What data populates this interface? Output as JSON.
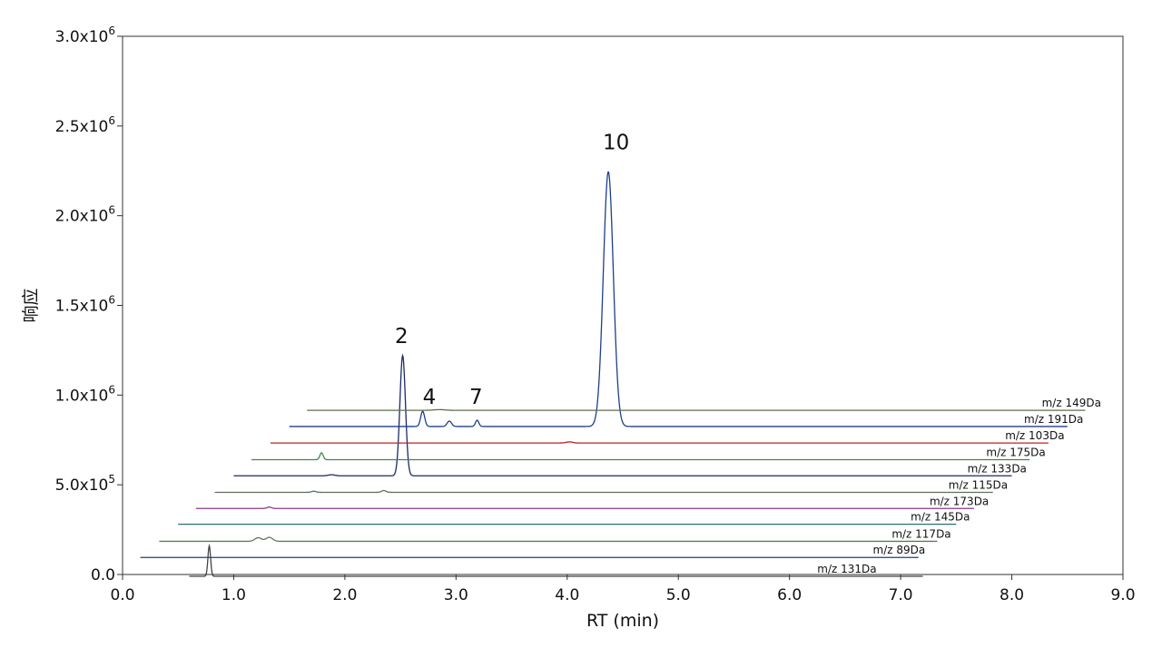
{
  "chart_data": {
    "type": "line",
    "title": "",
    "xlabel": "RT (min)",
    "ylabel": "响应",
    "xlim": [
      0,
      9
    ],
    "ylim": [
      0,
      3000000
    ],
    "grid": false,
    "x_ticks": [
      "0.0",
      "1.0",
      "2.0",
      "3.0",
      "4.0",
      "5.0",
      "6.0",
      "7.0",
      "8.0",
      "9.0"
    ],
    "y_ticks": [
      {
        "value": 0,
        "label": "0.0",
        "exp": ""
      },
      {
        "value": 500000,
        "label": "5.0x10",
        "exp": "5"
      },
      {
        "value": 1000000,
        "label": "1.0x10",
        "exp": "6"
      },
      {
        "value": 1500000,
        "label": "1.5x10",
        "exp": "6"
      },
      {
        "value": 2000000,
        "label": "2.0x10",
        "exp": "6"
      },
      {
        "value": 2500000,
        "label": "2.5x10",
        "exp": "6"
      },
      {
        "value": 3000000,
        "label": "3.0x10",
        "exp": "6"
      }
    ],
    "note": "Stacked (offset) chromatograms; each trace is drawn with a baseline offset in x and y.",
    "series": [
      {
        "name": "m/z 131Da",
        "color": "#444444",
        "x_offset": 0.0,
        "baseline": -10000,
        "x": [
          0.6,
          7.2
        ],
        "label_x": 6.25,
        "peaks": [
          {
            "rt": 0.78,
            "height": 170000,
            "width": 0.012
          }
        ]
      },
      {
        "name": "m/z 89Da",
        "color": "#1f3f7a",
        "x_offset": 0.16,
        "baseline": 95000,
        "x": [
          0.16,
          7.16
        ],
        "label_x": 6.75,
        "peaks": []
      },
      {
        "name": "m/z 117Da",
        "color": "#5b7a5b",
        "x_offset": 0.33,
        "baseline": 185000,
        "x": [
          0.33,
          7.33
        ],
        "label_x": 6.92,
        "peaks": [
          {
            "rt": 1.22,
            "height": 20000,
            "width": 0.03
          },
          {
            "rt": 1.32,
            "height": 22000,
            "width": 0.03
          }
        ]
      },
      {
        "name": "m/z 145Da",
        "color": "#2f6c7a",
        "x_offset": 0.5,
        "baseline": 280000,
        "x": [
          0.5,
          7.5
        ],
        "label_x": 7.09,
        "peaks": []
      },
      {
        "name": "m/z 173Da",
        "color": "#8a3a8a",
        "x_offset": 0.66,
        "baseline": 368000,
        "x": [
          0.66,
          7.66
        ],
        "label_x": 7.26,
        "peaks": [
          {
            "rt": 1.32,
            "height": 8000,
            "width": 0.02
          }
        ]
      },
      {
        "name": "m/z 115Da",
        "color": "#5f6e5f",
        "x_offset": 0.83,
        "baseline": 458000,
        "x": [
          0.83,
          7.83
        ],
        "label_x": 7.43,
        "peaks": [
          {
            "rt": 1.72,
            "height": 6000,
            "width": 0.02
          },
          {
            "rt": 2.35,
            "height": 10000,
            "width": 0.02
          }
        ]
      },
      {
        "name": "m/z 133Da",
        "color": "#1a2b6b",
        "x_offset": 1.0,
        "baseline": 550000,
        "x": [
          1.0,
          8.0
        ],
        "label_x": 7.6,
        "peaks": [
          {
            "rt": 2.52,
            "height": 670000,
            "width": 0.025
          },
          {
            "rt": 1.88,
            "height": 6000,
            "width": 0.03
          }
        ]
      },
      {
        "name": "m/z 175Da",
        "color": "#3a8a4a",
        "x_offset": 1.16,
        "baseline": 640000,
        "x": [
          1.16,
          8.16
        ],
        "label_x": 7.77,
        "peaks": [
          {
            "rt": 1.79,
            "height": 38000,
            "width": 0.015
          }
        ]
      },
      {
        "name": "m/z 103Da",
        "color": "#c02020",
        "x_offset": 1.33,
        "baseline": 733000,
        "x": [
          1.33,
          8.33
        ],
        "label_x": 7.94,
        "peaks": [
          {
            "rt": 4.02,
            "height": 6000,
            "width": 0.03
          }
        ]
      },
      {
        "name": "m/z 191Da",
        "color": "#1f3f8a",
        "x_offset": 1.5,
        "baseline": 825000,
        "x": [
          1.5,
          8.5
        ],
        "label_x": 8.11,
        "peaks": [
          {
            "rt": 2.7,
            "height": 85000,
            "width": 0.018
          },
          {
            "rt": 2.94,
            "height": 30000,
            "width": 0.02
          },
          {
            "rt": 3.19,
            "height": 35000,
            "width": 0.015
          },
          {
            "rt": 4.37,
            "height": 1420000,
            "width": 0.045
          }
        ]
      },
      {
        "name": "m/z 149Da",
        "color": "#5f6e4f",
        "x_offset": 1.66,
        "baseline": 915000,
        "x": [
          1.66,
          8.66
        ],
        "label_x": 8.27,
        "peaks": [
          {
            "rt": 2.85,
            "height": 4000,
            "width": 0.05
          }
        ]
      }
    ],
    "peak_labels": [
      {
        "text": "2",
        "x": 2.45,
        "y": 1290000
      },
      {
        "text": "4",
        "x": 2.7,
        "y": 950000
      },
      {
        "text": "7",
        "x": 3.12,
        "y": 950000
      },
      {
        "text": "10",
        "x": 4.32,
        "y": 2370000
      }
    ]
  }
}
